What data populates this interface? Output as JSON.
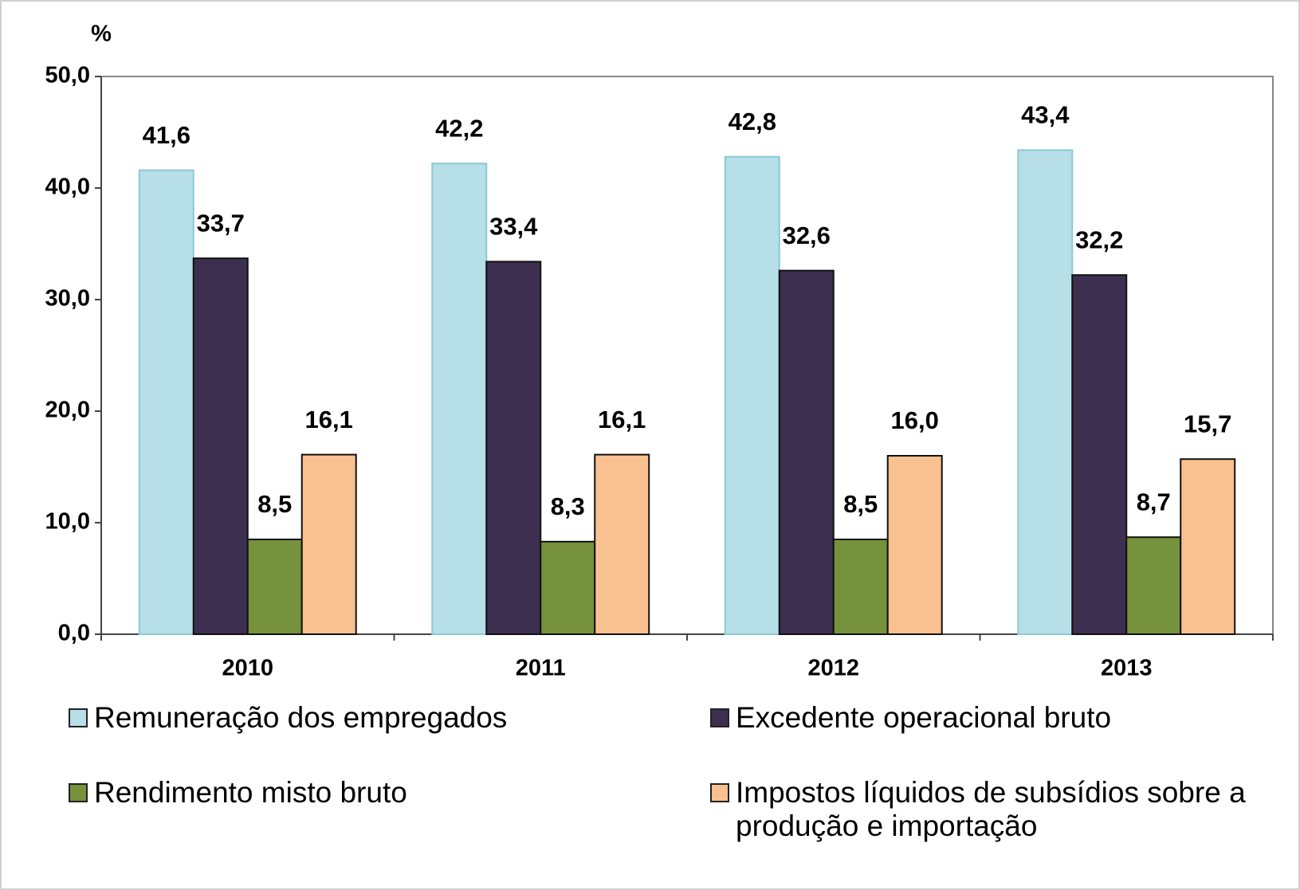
{
  "chart_data": {
    "type": "bar",
    "y_axis_label": "%",
    "categories": [
      "2010",
      "2011",
      "2012",
      "2013"
    ],
    "series": [
      {
        "name": "Remuneração dos empregados",
        "color": "#b7dfe8",
        "values": [
          41.6,
          42.2,
          42.8,
          43.4
        ],
        "value_labels": [
          "41,6",
          "42,2",
          "42,8",
          "43,4"
        ]
      },
      {
        "name": "Excedente operacional bruto",
        "color": "#3d2f4f",
        "values": [
          33.7,
          33.4,
          32.6,
          32.2
        ],
        "value_labels": [
          "33,7",
          "33,4",
          "32,6",
          "32,2"
        ]
      },
      {
        "name": "Rendimento misto bruto",
        "color": "#76923c",
        "values": [
          8.5,
          8.3,
          8.5,
          8.7
        ],
        "value_labels": [
          "8,5",
          "8,3",
          "8,5",
          "8,7"
        ]
      },
      {
        "name": "Impostos líquidos de subsídios sobre a produção e importação",
        "color": "#f9c090",
        "values": [
          16.1,
          16.1,
          16.0,
          15.7
        ],
        "value_labels": [
          "16,1",
          "16,1",
          "16,0",
          "15,7"
        ]
      }
    ],
    "ylim": [
      0,
      50
    ],
    "yticks": [
      {
        "value": 0,
        "label": "0,0"
      },
      {
        "value": 10,
        "label": "10,0"
      },
      {
        "value": 20,
        "label": "20,0"
      },
      {
        "value": 30,
        "label": "30,0"
      },
      {
        "value": 40,
        "label": "40,0"
      },
      {
        "value": 50,
        "label": "50,0"
      }
    ],
    "grid": false,
    "legend": "bottom"
  }
}
